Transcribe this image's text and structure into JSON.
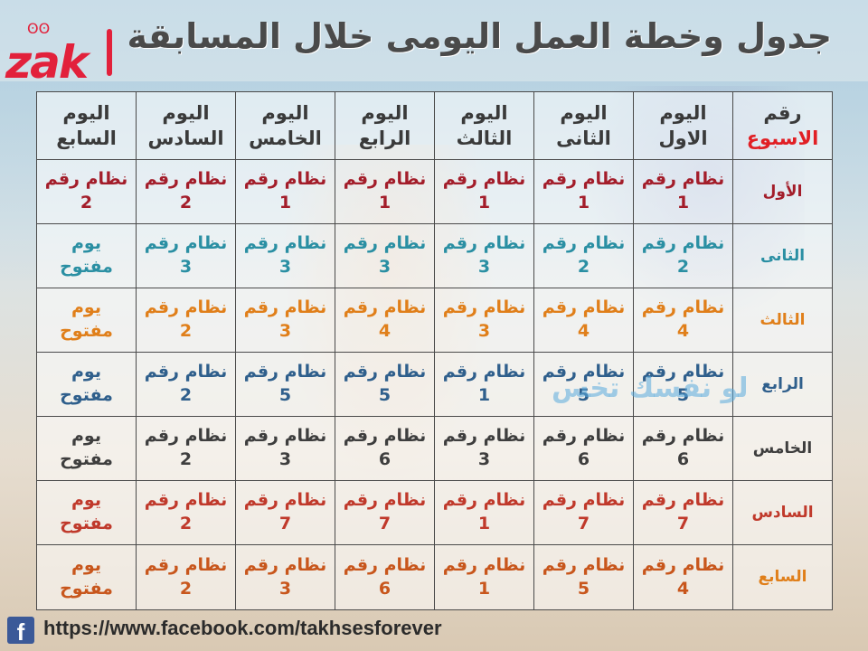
{
  "title": "جدول وخطة العمل اليومى خلال المسابقة",
  "logo": {
    "text": "zak",
    "face": "ʘʘ"
  },
  "watermark": "لو نفسك تخس",
  "header": {
    "week_line1": "رقم",
    "week_line2": "الاسبوع",
    "days": [
      [
        "اليوم",
        "الاول"
      ],
      [
        "اليوم",
        "الثانى"
      ],
      [
        "اليوم",
        "الثالث"
      ],
      [
        "اليوم",
        "الرابع"
      ],
      [
        "اليوم",
        "الخامس"
      ],
      [
        "اليوم",
        "السادس"
      ],
      [
        "اليوم",
        "السابع"
      ]
    ]
  },
  "rows": [
    {
      "week": "الأول",
      "cells": [
        [
          "نظام رقم",
          "1"
        ],
        [
          "نظام رقم",
          "1"
        ],
        [
          "نظام رقم",
          "1"
        ],
        [
          "نظام رقم",
          "1"
        ],
        [
          "نظام رقم",
          "1"
        ],
        [
          "نظام رقم",
          "2"
        ],
        [
          "نظام رقم",
          "2"
        ]
      ]
    },
    {
      "week": "الثانى",
      "cells": [
        [
          "نظام رقم",
          "2"
        ],
        [
          "نظام رقم",
          "2"
        ],
        [
          "نظام رقم",
          "3"
        ],
        [
          "نظام رقم",
          "3"
        ],
        [
          "نظام رقم",
          "3"
        ],
        [
          "نظام رقم",
          "3"
        ],
        [
          "يوم",
          "مفتوح"
        ]
      ]
    },
    {
      "week": "الثالث",
      "cells": [
        [
          "نظام رقم",
          "4"
        ],
        [
          "نظام رقم",
          "4"
        ],
        [
          "نظام رقم",
          "3"
        ],
        [
          "نظام رقم",
          "4"
        ],
        [
          "نظام رقم",
          "3"
        ],
        [
          "نظام رقم",
          "2"
        ],
        [
          "يوم",
          "مفتوح"
        ]
      ]
    },
    {
      "week": "الرابع",
      "cells": [
        [
          "نظام رقم",
          "5"
        ],
        [
          "نظام رقم",
          "5"
        ],
        [
          "نظام رقم",
          "1"
        ],
        [
          "نظام رقم",
          "5"
        ],
        [
          "نظام رقم",
          "5"
        ],
        [
          "نظام رقم",
          "2"
        ],
        [
          "يوم",
          "مفتوح"
        ]
      ]
    },
    {
      "week": "الخامس",
      "cells": [
        [
          "نظام رقم",
          "6"
        ],
        [
          "نظام رقم",
          "6"
        ],
        [
          "نظام رقم",
          "3"
        ],
        [
          "نظام رقم",
          "6"
        ],
        [
          "نظام رقم",
          "3"
        ],
        [
          "نظام رقم",
          "2"
        ],
        [
          "يوم",
          "مفتوح"
        ]
      ]
    },
    {
      "week": "السادس",
      "cells": [
        [
          "نظام رقم",
          "7"
        ],
        [
          "نظام رقم",
          "7"
        ],
        [
          "نظام رقم",
          "1"
        ],
        [
          "نظام رقم",
          "7"
        ],
        [
          "نظام رقم",
          "7"
        ],
        [
          "نظام رقم",
          "2"
        ],
        [
          "يوم",
          "مفتوح"
        ]
      ]
    },
    {
      "week": "السابع",
      "cells": [
        [
          "نظام رقم",
          "4"
        ],
        [
          "نظام رقم",
          "5"
        ],
        [
          "نظام رقم",
          "1"
        ],
        [
          "نظام رقم",
          "6"
        ],
        [
          "نظام رقم",
          "3"
        ],
        [
          "نظام رقم",
          "2"
        ],
        [
          "يوم",
          "مفتوح"
        ]
      ]
    }
  ],
  "row_colors": [
    "#a31d2a",
    "#2a8fa3",
    "#e07f1a",
    "#2f5f8c",
    "#3e3e3e",
    "#c0392b",
    "#c8561c"
  ],
  "week_label_colors": [
    "#a31d2a",
    "#2a8fa3",
    "#e07f1a",
    "#2f5f8c",
    "#3e3e3e",
    "#c0392b",
    "#e07f1a"
  ],
  "footer": {
    "icon": "facebook-icon",
    "icon_glyph": "f",
    "url": "https://www.facebook.com/takhsesforever"
  }
}
